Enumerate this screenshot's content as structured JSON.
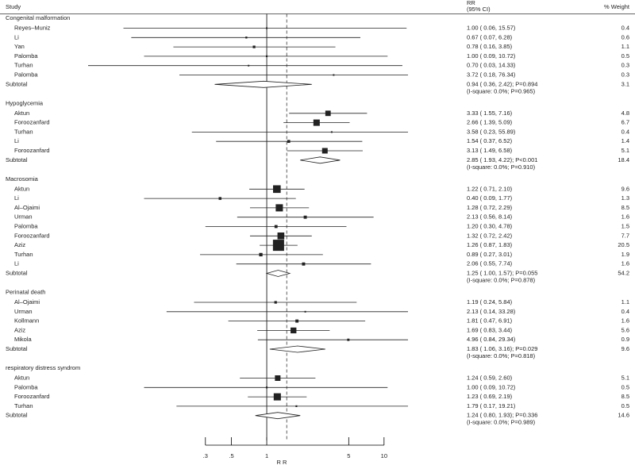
{
  "chart_data": {
    "type": "forest",
    "columns": {
      "study": "Study",
      "effect": "RR",
      "ci": "(95% CI)",
      "weight": "% Weight"
    },
    "xlabel": "R R",
    "log_x": true,
    "xlim": [
      0.03,
      16
    ],
    "xticks": [
      {
        "value": 0.3,
        "label": ".3"
      },
      {
        "value": 0.5,
        "label": ".5"
      },
      1,
      5,
      10
    ],
    "null_line": 1,
    "overall_line": 1.48,
    "groups": [
      {
        "name": "Congenital malformation",
        "studies": [
          {
            "name": "Reyes–Muniz",
            "rr": 1.0,
            "lo": 0.06,
            "hi": 15.57,
            "label": "1.00 ( 0.06, 15.57)",
            "weight": 0.4
          },
          {
            "name": "Li",
            "rr": 0.67,
            "lo": 0.07,
            "hi": 6.28,
            "label": "0.67 ( 0.07, 6.28)",
            "weight": 0.6
          },
          {
            "name": "Yan",
            "rr": 0.78,
            "lo": 0.16,
            "hi": 3.85,
            "label": "0.78 ( 0.16, 3.85)",
            "weight": 1.1
          },
          {
            "name": "Palomba",
            "rr": 1.0,
            "lo": 0.09,
            "hi": 10.72,
            "label": "1.00 ( 0.09, 10.72)",
            "weight": 0.5
          },
          {
            "name": "Turhan",
            "rr": 0.7,
            "lo": 0.03,
            "hi": 14.33,
            "label": "0.70 ( 0.03, 14.33)",
            "weight": 0.3
          },
          {
            "name": "Palomba",
            "rr": 3.72,
            "lo": 0.18,
            "hi": 76.34,
            "label": "3.72 ( 0.18, 76.34)",
            "weight": 0.3
          }
        ],
        "subtotal": {
          "name": "Subtotal",
          "rr": 0.94,
          "lo": 0.36,
          "hi": 2.42,
          "label": "0.94 ( 0.36, 2.42); P=0.894",
          "heterogeneity": "(I-square: 0.0%; P=0.965)",
          "weight": 3.1
        }
      },
      {
        "name": "Hypoglycemia",
        "studies": [
          {
            "name": "Aktun",
            "rr": 3.33,
            "lo": 1.55,
            "hi": 7.16,
            "label": "3.33 ( 1.55, 7.16)",
            "weight": 4.8
          },
          {
            "name": "Foroozanfard",
            "rr": 2.66,
            "lo": 1.39,
            "hi": 5.09,
            "label": "2.66 ( 1.39, 5.09)",
            "weight": 6.7
          },
          {
            "name": "Turhan",
            "rr": 3.58,
            "lo": 0.23,
            "hi": 55.89,
            "label": "3.58 ( 0.23, 55.89)",
            "weight": 0.4
          },
          {
            "name": "Li",
            "rr": 1.54,
            "lo": 0.37,
            "hi": 6.52,
            "label": "1.54 ( 0.37, 6.52)",
            "weight": 1.4
          },
          {
            "name": "Foroozanfard",
            "rr": 3.13,
            "lo": 1.49,
            "hi": 6.58,
            "label": "3.13 ( 1.49, 6.58)",
            "weight": 5.1
          }
        ],
        "subtotal": {
          "name": "Subtotal",
          "rr": 2.85,
          "lo": 1.93,
          "hi": 4.22,
          "label": "2.85 ( 1.93, 4.22); P<0.001",
          "heterogeneity": "(I-square: 0.0%; P=0.910)",
          "weight": 18.4
        }
      },
      {
        "name": "Macrosomia",
        "studies": [
          {
            "name": "Aktun",
            "rr": 1.22,
            "lo": 0.71,
            "hi": 2.1,
            "label": "1.22 ( 0.71, 2.10)",
            "weight": 9.6
          },
          {
            "name": "Li",
            "rr": 0.4,
            "lo": 0.09,
            "hi": 1.77,
            "label": "0.40 ( 0.09, 1.77)",
            "weight": 1.3
          },
          {
            "name": "Al–Ojaimi",
            "rr": 1.28,
            "lo": 0.72,
            "hi": 2.29,
            "label": "1.28 ( 0.72, 2.29)",
            "weight": 8.5
          },
          {
            "name": "Urman",
            "rr": 2.13,
            "lo": 0.56,
            "hi": 8.14,
            "label": "2.13 ( 0.56, 8.14)",
            "weight": 1.6
          },
          {
            "name": "Palomba",
            "rr": 1.2,
            "lo": 0.3,
            "hi": 4.78,
            "label": "1.20 ( 0.30, 4.78)",
            "weight": 1.5
          },
          {
            "name": "Foroozanfard",
            "rr": 1.32,
            "lo": 0.72,
            "hi": 2.42,
            "label": "1.32 ( 0.72, 2.42)",
            "weight": 7.7
          },
          {
            "name": "Aziz",
            "rr": 1.26,
            "lo": 0.87,
            "hi": 1.83,
            "label": "1.26 ( 0.87, 1.83)",
            "weight": 20.5
          },
          {
            "name": "Turhan",
            "rr": 0.89,
            "lo": 0.27,
            "hi": 3.01,
            "label": "0.89 ( 0.27, 3.01)",
            "weight": 1.9
          },
          {
            "name": "Li",
            "rr": 2.06,
            "lo": 0.55,
            "hi": 7.74,
            "label": "2.06 ( 0.55, 7.74)",
            "weight": 1.6
          }
        ],
        "subtotal": {
          "name": "Subtotal",
          "rr": 1.25,
          "lo": 1.0,
          "hi": 1.57,
          "label": "1.25 ( 1.00, 1.57); P=0.055",
          "heterogeneity": "(I-square: 0.0%; P=0.878)",
          "weight": 54.2
        }
      },
      {
        "name": "Perinatal death",
        "studies": [
          {
            "name": "Al–Ojaimi",
            "rr": 1.19,
            "lo": 0.24,
            "hi": 5.84,
            "label": "1.19 ( 0.24, 5.84)",
            "weight": 1.1
          },
          {
            "name": "Urman",
            "rr": 2.13,
            "lo": 0.14,
            "hi": 33.28,
            "label": "2.13 ( 0.14, 33.28)",
            "weight": 0.4
          },
          {
            "name": "Kollmann",
            "rr": 1.81,
            "lo": 0.47,
            "hi": 6.91,
            "label": "1.81 ( 0.47, 6.91)",
            "weight": 1.6
          },
          {
            "name": "Aziz",
            "rr": 1.69,
            "lo": 0.83,
            "hi": 3.44,
            "label": "1.69 ( 0.83, 3.44)",
            "weight": 5.6
          },
          {
            "name": "Mikola",
            "rr": 4.96,
            "lo": 0.84,
            "hi": 29.34,
            "label": "4.96 ( 0.84, 29.34)",
            "weight": 0.9
          }
        ],
        "subtotal": {
          "name": "Subtotal",
          "rr": 1.83,
          "lo": 1.06,
          "hi": 3.16,
          "label": "1.83 ( 1.06, 3.16); P=0.029",
          "heterogeneity": "(I-square: 0.0%; P=0.818)",
          "weight": 9.6
        }
      },
      {
        "name": "respiratory distress syndrom",
        "studies": [
          {
            "name": "Aktun",
            "rr": 1.24,
            "lo": 0.59,
            "hi": 2.6,
            "label": "1.24 ( 0.59, 2.60)",
            "weight": 5.1
          },
          {
            "name": "Palomba",
            "rr": 1.0,
            "lo": 0.09,
            "hi": 10.72,
            "label": "1.00 ( 0.09, 10.72)",
            "weight": 0.5
          },
          {
            "name": "Foroozanfard",
            "rr": 1.23,
            "lo": 0.69,
            "hi": 2.19,
            "label": "1.23 ( 0.69, 2.19)",
            "weight": 8.5
          },
          {
            "name": "Turhan",
            "rr": 1.79,
            "lo": 0.17,
            "hi": 19.21,
            "label": "1.79 ( 0.17, 19.21)",
            "weight": 0.5
          }
        ],
        "subtotal": {
          "name": "Subtotal",
          "rr": 1.24,
          "lo": 0.8,
          "hi": 1.93,
          "label": "1.24 ( 0.80, 1.93); P=0.336",
          "heterogeneity": "(I-square: 0.0%; P=0.989)",
          "weight": 14.6
        }
      }
    ]
  }
}
